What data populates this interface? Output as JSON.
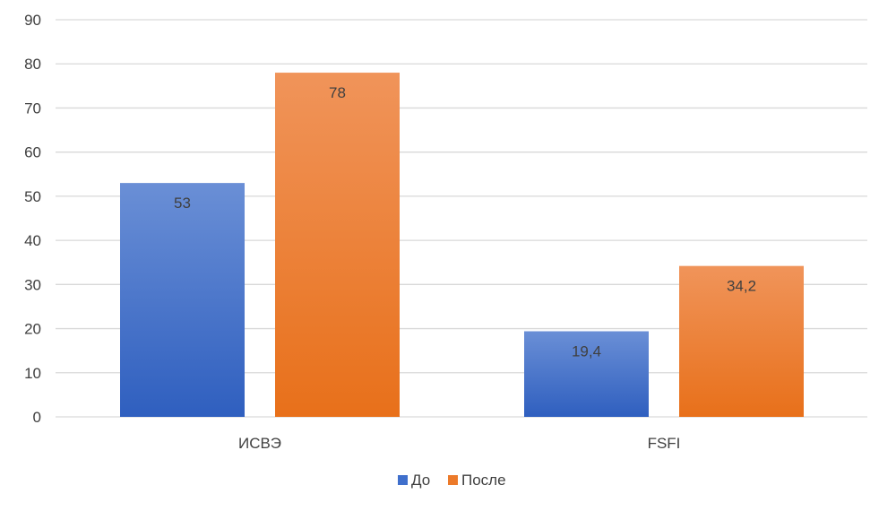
{
  "chart_data": {
    "type": "bar",
    "categories": [
      "ИСВЭ",
      "FSFI"
    ],
    "series": [
      {
        "name": "До",
        "values": [
          53,
          19.4
        ],
        "labels": [
          "53",
          "19,4"
        ],
        "color_top": "#6a8fd6",
        "color_bottom": "#2f5fbf"
      },
      {
        "name": "После",
        "values": [
          78,
          34.2
        ],
        "labels": [
          "78",
          "34,2"
        ],
        "color_top": "#f0945a",
        "color_bottom": "#e8701a"
      }
    ],
    "ylim": [
      0,
      90
    ],
    "yticks": [
      "0",
      "10",
      "20",
      "30",
      "40",
      "50",
      "60",
      "70",
      "80",
      "90"
    ],
    "grid": true,
    "legend": "bottom",
    "gridline_color": "#d9d9d9",
    "axis_color": "#d9d9d9"
  }
}
